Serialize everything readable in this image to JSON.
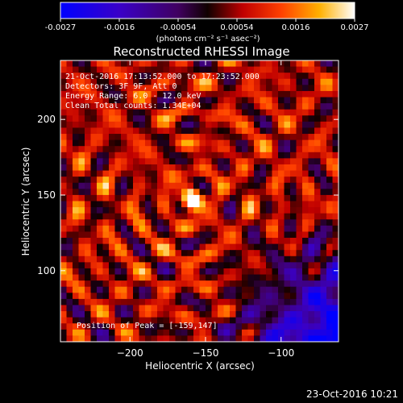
{
  "colorbar": {
    "ticks": [
      "-0.0027",
      "-0.0016",
      "-0.00054",
      "0.00054",
      "0.0016",
      "0.0027"
    ],
    "unit_label": "(photons cm⁻² s⁻¹ asec⁻²)"
  },
  "chart_data": {
    "type": "heatmap",
    "title": "Reconstructed RHESSI Image",
    "xlabel": "Heliocentric X (arcsec)",
    "ylabel": "Heliocentric Y (arcsec)",
    "xlim": [
      -246,
      -62
    ],
    "ylim": [
      53,
      239
    ],
    "xticks": [
      -200,
      -150,
      -100
    ],
    "xtick_labels": [
      "−200",
      "−150",
      "−100"
    ],
    "yticks": [
      100,
      150,
      200
    ],
    "ytick_labels": [
      "100",
      "150",
      "200"
    ],
    "colormap": "rainbow/hot: blue-purple (negative) to red-orange-yellow-white (positive)",
    "value_range": [
      -0.0027,
      0.0027
    ],
    "peak": [
      -159,
      147
    ],
    "annotations": [
      "21-Oct-2016 17:13:52.000 to 17:23:52.000",
      "Detectors: 3F 9F, Att 0",
      "Energy Range: 6.0 - 12.0 keV",
      "Clean    Total counts: 1.34E+04"
    ],
    "peak_label": "Position of Peak = [-159,147]"
  },
  "footer": {
    "timestamp": "23-Oct-2016 10:21"
  }
}
